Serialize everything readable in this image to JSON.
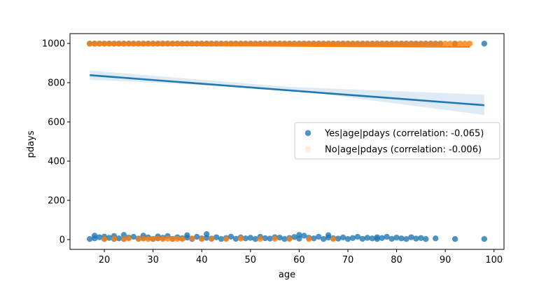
{
  "chart_data": {
    "type": "scatter",
    "title": "",
    "xlabel": "age",
    "ylabel": "pdays",
    "xlim": [
      12.95,
      102.05
    ],
    "ylim": [
      -49.95,
      1049.95
    ],
    "xticks": [
      20,
      30,
      40,
      50,
      60,
      70,
      80,
      90,
      100
    ],
    "yticks": [
      0,
      200,
      400,
      600,
      800,
      1000
    ],
    "grid": false,
    "legend_position": "center-right",
    "series": [
      {
        "name": "Yes|age|pdays (correlation: -0.065)",
        "color": "#1f77b4",
        "point_opacity": 0.8,
        "points_high": {
          "y": 999,
          "x_start": 17,
          "x_end": 89,
          "x_extra": [
            92,
            98
          ]
        },
        "points_low": {
          "x": [
            17,
            18,
            18,
            19,
            20,
            20,
            21,
            22,
            22,
            23,
            24,
            24,
            25,
            26,
            27,
            28,
            28,
            29,
            30,
            31,
            31,
            32,
            33,
            34,
            35,
            36,
            37,
            37,
            38,
            39,
            40,
            41,
            41,
            42,
            43,
            44,
            45,
            46,
            47,
            48,
            49,
            50,
            51,
            52,
            53,
            54,
            55,
            56,
            57,
            58,
            59,
            60,
            60,
            61,
            62,
            63,
            64,
            65,
            66,
            66,
            67,
            68,
            69,
            70,
            71,
            72,
            73,
            74,
            75,
            76,
            76,
            77,
            78,
            79,
            80,
            81,
            82,
            83,
            84,
            85,
            86,
            88,
            92,
            98
          ],
          "y": [
            3,
            6,
            20,
            12,
            4,
            15,
            9,
            3,
            18,
            6,
            3,
            24,
            10,
            14,
            5,
            8,
            20,
            11,
            3,
            16,
            6,
            9,
            18,
            4,
            12,
            7,
            10,
            22,
            3,
            14,
            6,
            28,
            9,
            5,
            12,
            3,
            8,
            15,
            4,
            11,
            6,
            9,
            3,
            14,
            7,
            5,
            12,
            10,
            3,
            8,
            13,
            5,
            24,
            20,
            9,
            6,
            14,
            3,
            10,
            22,
            7,
            5,
            11,
            3,
            8,
            14,
            4,
            9,
            6,
            12,
            3,
            8,
            14,
            4,
            10,
            6,
            3,
            12,
            5,
            8,
            3,
            6,
            3,
            3
          ]
        },
        "fit_line": {
          "x": [
            17,
            98
          ],
          "y": [
            838,
            685
          ]
        },
        "ci_band": {
          "x": [
            17,
            57,
            98
          ],
          "lower": [
            815,
            768,
            635
          ],
          "upper": [
            862,
            780,
            738
          ]
        }
      },
      {
        "name": "No|age|pdays (correlation: -0.006)",
        "color": "#ff7f0e",
        "point_opacity": 0.8,
        "points_high": {
          "y": 999,
          "x_start": 17,
          "x_end": 95
        },
        "points_low": {
          "x": [
            20,
            22,
            24,
            25,
            27,
            28,
            29,
            30,
            31,
            32,
            33,
            34,
            35,
            36,
            38,
            40,
            42,
            45,
            48,
            52,
            55,
            58,
            62,
            67
          ],
          "y": [
            3,
            4,
            3,
            6,
            3,
            5,
            3,
            4,
            6,
            3,
            5,
            3,
            4,
            3,
            6,
            3,
            4,
            3,
            5,
            3,
            4,
            3,
            3,
            3
          ]
        },
        "fit_line": {
          "x": [
            17,
            95
          ],
          "y": [
            993,
            983
          ]
        },
        "ci_band": {
          "x": [
            17,
            95
          ],
          "lower": [
            990,
            978
          ],
          "upper": [
            996,
            988
          ]
        }
      }
    ]
  }
}
